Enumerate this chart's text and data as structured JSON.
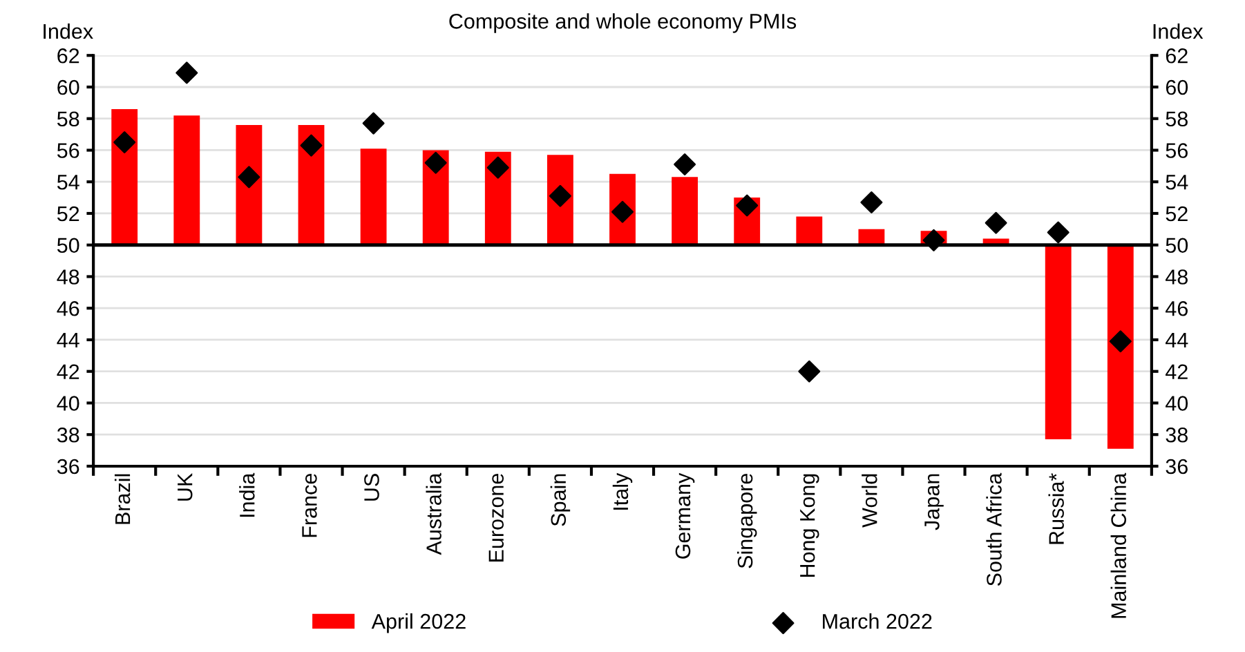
{
  "chart_data": {
    "type": "bar",
    "title": "Composite and whole economy PMIs",
    "ylabel": "Index",
    "y2label": "Index",
    "categories": [
      "Brazil",
      "UK",
      "India",
      "France",
      "US",
      "Australia",
      "Eurozone",
      "Spain",
      "Italy",
      "Germany",
      "Singapore",
      "Hong Kong",
      "World",
      "Japan",
      "South Africa",
      "Russia*",
      "Mainland China"
    ],
    "series": [
      {
        "name": "April 2022",
        "color": "#ff0000",
        "base": [
          50,
          50,
          50,
          50,
          50,
          50,
          50,
          50,
          50,
          50,
          50,
          50,
          50,
          50,
          50,
          50,
          50
        ],
        "values": [
          8.6,
          8.2,
          7.6,
          7.6,
          6.1,
          6.0,
          5.9,
          5.7,
          4.5,
          4.3,
          3.0,
          1.8,
          1.0,
          0.9,
          0.4,
          -12.3,
          -12.9
        ]
      },
      {
        "name": "March 2022",
        "type": "scatter",
        "color": "#000000",
        "marker": "diamond",
        "values": [
          56.5,
          60.9,
          54.3,
          56.3,
          57.7,
          55.2,
          54.9,
          53.1,
          52.1,
          55.1,
          52.5,
          42.0,
          52.7,
          50.3,
          51.4,
          50.8,
          43.9
        ]
      }
    ],
    "ylim": [
      36,
      62
    ],
    "yticks": [
      36,
      38,
      40,
      42,
      44,
      46,
      48,
      50,
      52,
      54,
      56,
      58,
      60,
      62
    ],
    "y2lim": [
      36,
      62
    ],
    "y2ticks": [
      36,
      38,
      40,
      42,
      44,
      46,
      48,
      50,
      52,
      54,
      56,
      58,
      60,
      62
    ],
    "ref_lines": [
      {
        "axis": "y",
        "value": 50,
        "color": "#000000"
      }
    ],
    "grid": "y",
    "legend": "bottom"
  }
}
